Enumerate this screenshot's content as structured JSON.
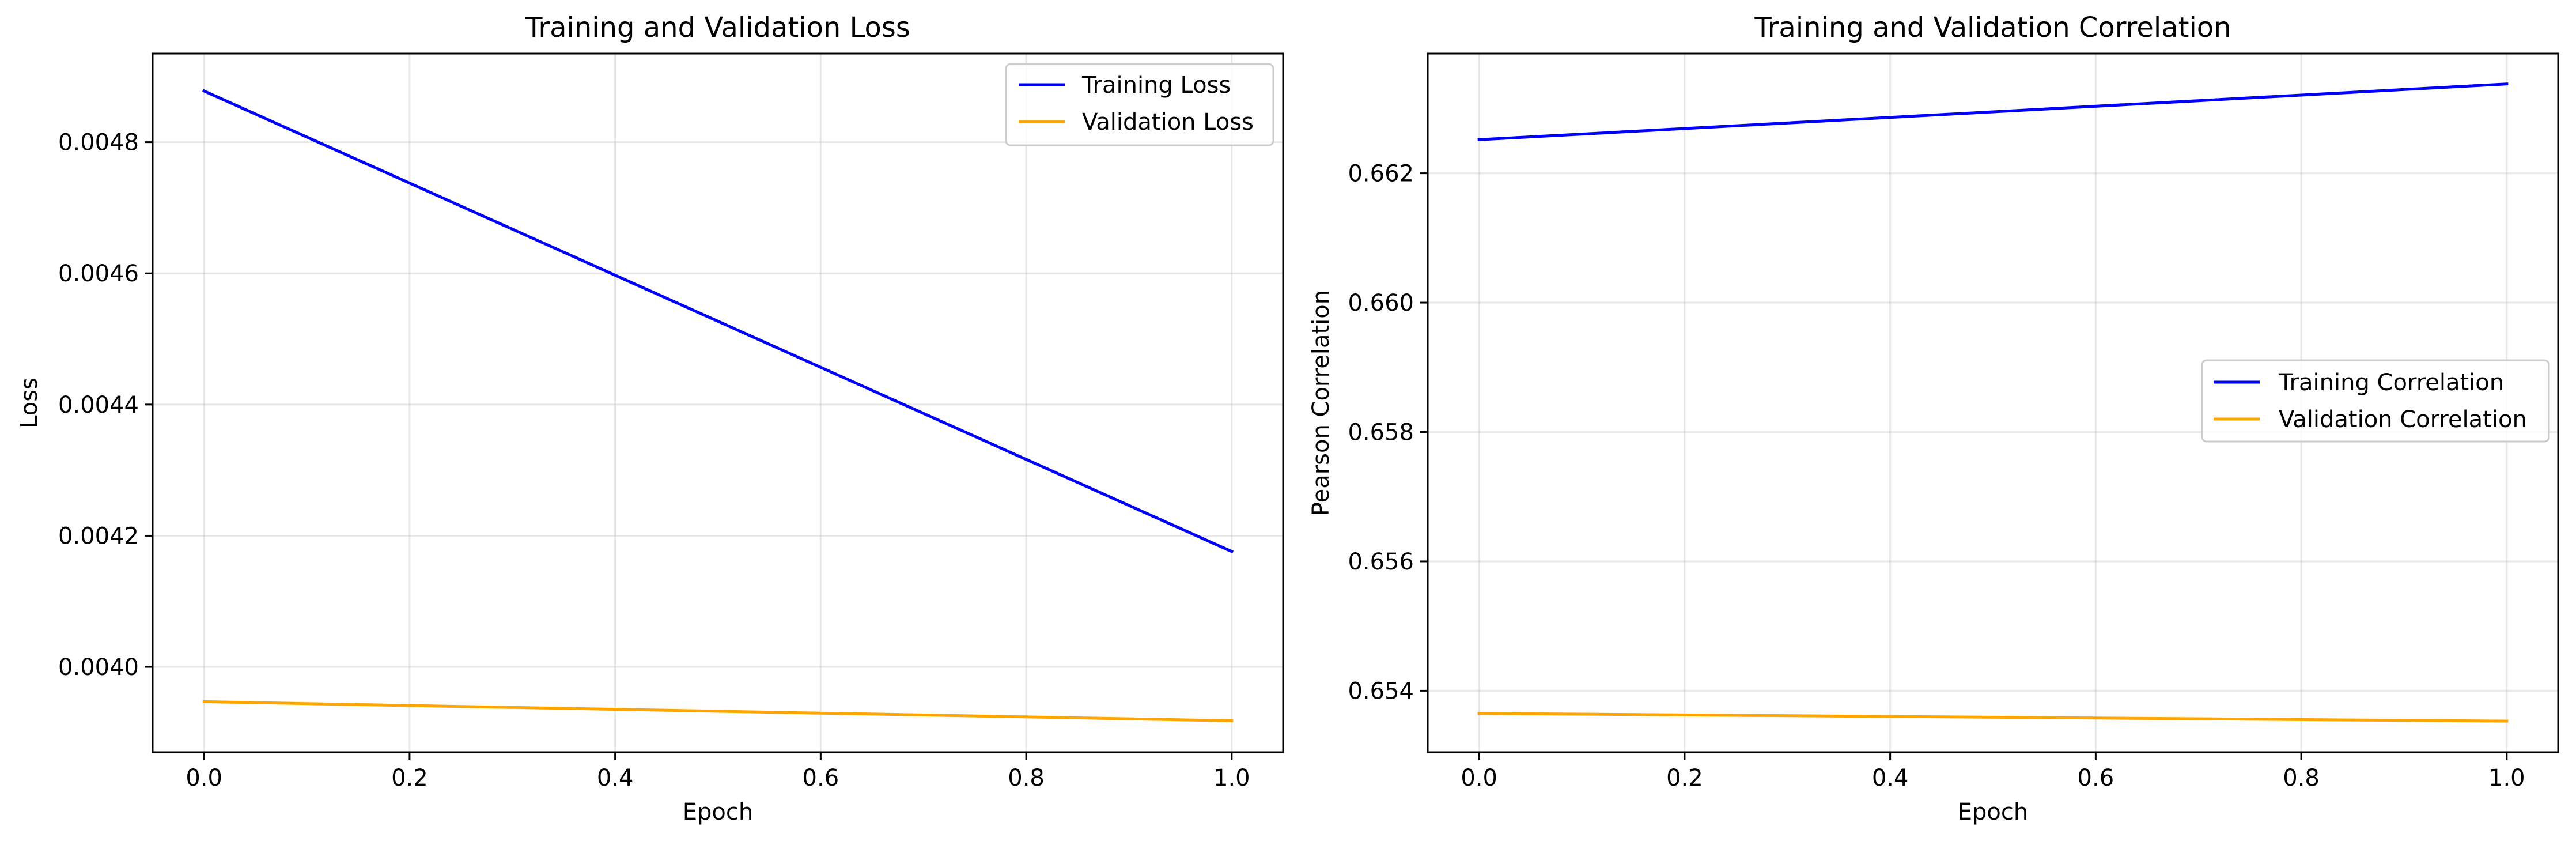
{
  "chart_data": [
    {
      "type": "line",
      "title": "Training and Validation Loss",
      "xlabel": "Epoch",
      "ylabel": "Loss",
      "xlim": [
        -0.05,
        1.05
      ],
      "ylim": [
        0.00387,
        0.004935
      ],
      "xticks": [
        0.0,
        0.2,
        0.4,
        0.6,
        0.8,
        1.0
      ],
      "xtick_labels": [
        "0.0",
        "0.2",
        "0.4",
        "0.6",
        "0.8",
        "1.0"
      ],
      "yticks": [
        0.004,
        0.0042,
        0.0044,
        0.0046,
        0.0048
      ],
      "ytick_labels": [
        "0.0040",
        "0.0042",
        "0.0044",
        "0.0046",
        "0.0048"
      ],
      "grid": true,
      "legend_position": "top-right",
      "series": [
        {
          "name": "Training Loss",
          "color": "#0000ff",
          "x": [
            0,
            1
          ],
          "y": [
            0.004878,
            0.004176
          ]
        },
        {
          "name": "Validation Loss",
          "color": "#ffa500",
          "x": [
            0,
            1
          ],
          "y": [
            0.003947,
            0.003918
          ]
        }
      ]
    },
    {
      "type": "line",
      "title": "Training and Validation Correlation",
      "xlabel": "Epoch",
      "ylabel": "Pearson Correlation",
      "xlim": [
        -0.05,
        1.05
      ],
      "ylim": [
        0.65305,
        0.66385
      ],
      "xticks": [
        0.0,
        0.2,
        0.4,
        0.6,
        0.8,
        1.0
      ],
      "xtick_labels": [
        "0.0",
        "0.2",
        "0.4",
        "0.6",
        "0.8",
        "1.0"
      ],
      "yticks": [
        0.654,
        0.656,
        0.658,
        0.66,
        0.662
      ],
      "ytick_labels": [
        "0.654",
        "0.656",
        "0.658",
        "0.660",
        "0.662"
      ],
      "grid": true,
      "legend_position": "center-right",
      "series": [
        {
          "name": "Training Correlation",
          "color": "#0000ff",
          "x": [
            0,
            1
          ],
          "y": [
            0.66252,
            0.66338
          ]
        },
        {
          "name": "Validation Correlation",
          "color": "#ffa500",
          "x": [
            0,
            1
          ],
          "y": [
            0.65365,
            0.65353
          ]
        }
      ]
    }
  ]
}
